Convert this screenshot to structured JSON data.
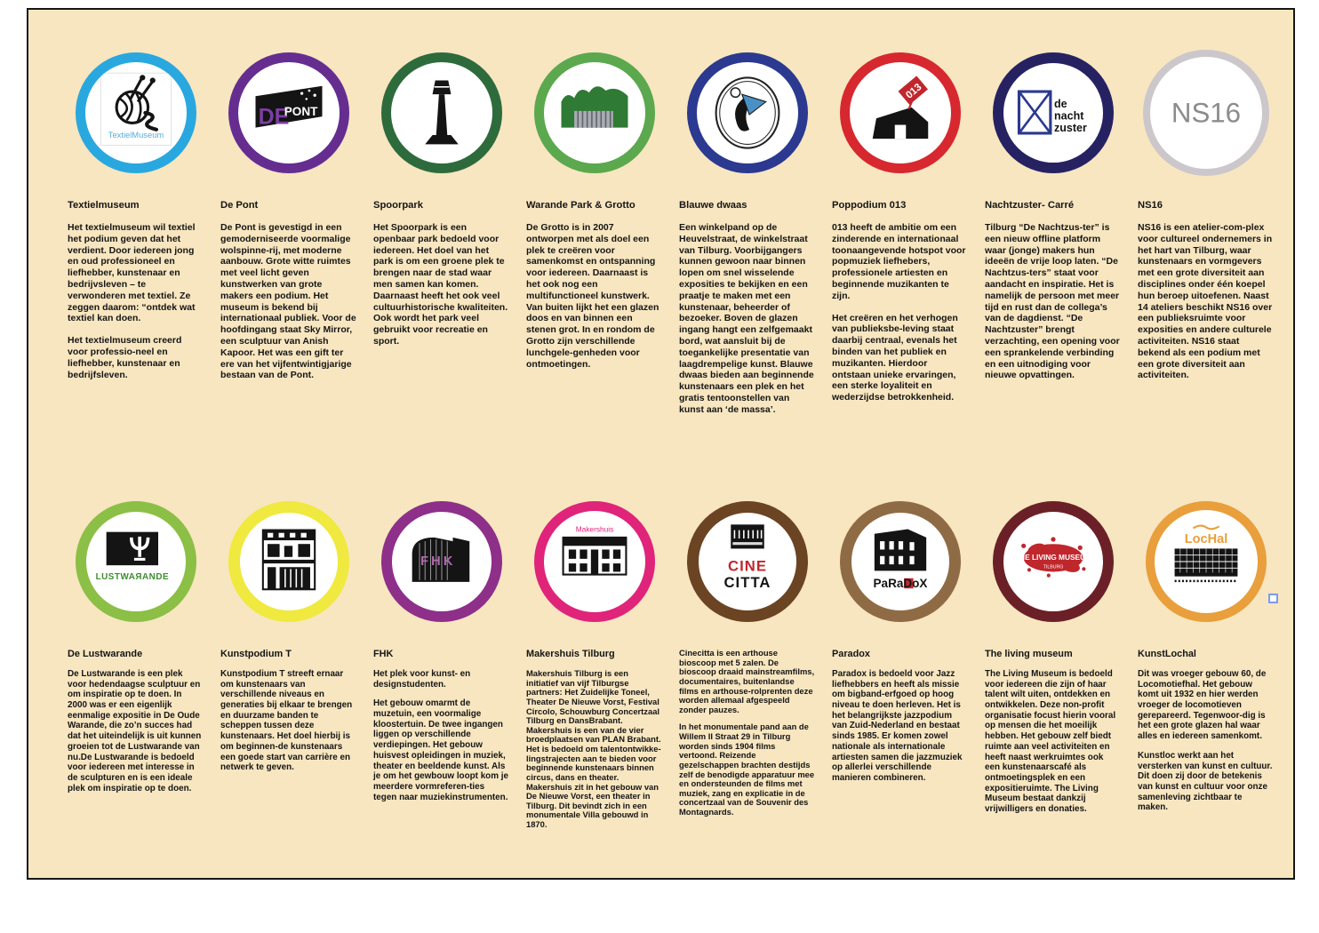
{
  "poster": {
    "background_color": "#F7E6C0",
    "border_color": "#161616",
    "page_background": "#ffffff",
    "stray_marker_color": "#7c9bf0",
    "venues": [
      {
        "id": "textielmuseum",
        "row": 1,
        "title": "Textielmuseum",
        "ring_color": "#29A8DF",
        "ring_width": 11,
        "logo_icon": "yarn-ball-knitting-needles-icon",
        "logo_lines": [
          "TextielMuseum"
        ],
        "logo_text_color": "#56AEDC",
        "paragraphs": [
          "Het textielmuseum wil textiel het podium geven dat het verdient. Door iedereen jong en oud professioneel en liefhebber, kunstenaar en bedrijvsleven – te verwonderen met textiel. Ze zeggen daarom: “ontdek wat textiel kan doen.",
          "Het textielmuseum creerd voor professio-neel en liefhebber, kunstenaar en bedrijfsleven."
        ]
      },
      {
        "id": "depont",
        "row": 1,
        "title": "De Pont",
        "ring_color": "#662D91",
        "ring_width": 11,
        "logo_icon": "de-pont-banner-icon",
        "logo_lines": [
          "DE",
          "PONT"
        ],
        "paragraphs": [
          "De Pont is gevestigd in een gemoderniseerde voormalige wolspinne-rij, met moderne aanbouw.  Grote witte ruimtes met veel licht geven kunstwerken van grote makers een podium. Het museum is bekend bij internationaal publiek. Voor de hoofdingang staat Sky Mirror, een sculptuur van Anish Kapoor. Het was een gift ter ere van het vijfentwintigjarige bestaan van de Pont."
        ]
      },
      {
        "id": "spoorpark",
        "row": 1,
        "title": "Spoorpark",
        "ring_color": "#2E6B3C",
        "ring_width": 11,
        "logo_icon": "observation-tower-icon",
        "logo_lines": [],
        "paragraphs": [
          "Het Spoorpark is een openbaar park bedoeld voor iedereen. Het doel van het park is om een groene plek te brengen naar de stad waar men samen kan komen. Daarnaast heeft het ook veel cultuurhistorische kwaliteiten. Ook wordt het park veel gebruikt voor recreatie en sport."
        ]
      },
      {
        "id": "warande",
        "row": 1,
        "title": "Warande Park & Grotto",
        "ring_color": "#5CA84E",
        "ring_width": 11,
        "logo_icon": "trees-with-glass-grotto-icon",
        "logo_lines": [],
        "paragraphs": [
          "De Grotto is in 2007 ontworpen met als doel een plek te creëren voor samenkomst en ontspanning voor iedereen. Daarnaast is het ook nog een multifunctioneel kunstwerk. Van buiten lijkt het een glazen doos en van binnen een stenen grot. In en rondom de Grotto zijn verschillende lunchgele-genheden voor ontmoetingen."
        ]
      },
      {
        "id": "blauwedwaas",
        "row": 1,
        "title": "Blauwe dwaas",
        "ring_color": "#2B3990",
        "ring_width": 11,
        "logo_icon": "sketched-face-with-blue-jester-hat-icon",
        "logo_lines": [],
        "paragraphs": [
          "Een winkelpand op de Heuvelstraat, de winkelstraat van Tilburg. Voorbijgangers kunnen gewoon naar binnen lopen om snel wisselende exposities te bekijken en een praatje te maken met een kunstenaar, beheerder of bezoeker. Boven de glazen ingang hangt een zelfgemaakt bord, wat aansluit bij de toegankelijke presentatie van laagdrempelige kunst. Blauwe dwaas bieden aan beginnende kunstenaars een plek en het gratis tentoonstellen van kunst aan ‘de massa’."
        ]
      },
      {
        "id": "poppodium013",
        "row": 1,
        "title": "Poppodium 013",
        "ring_color": "#D7282F",
        "ring_width": 11,
        "logo_icon": "013-venue-building-icon",
        "logo_lines": [
          "013"
        ],
        "paragraphs": [
          "013 heeft de ambitie om een zinderende en internationaal toonaangevende hotspot voor popmuziek liefhebers, professionele artiesten en beginnende muzikanten te zijn.",
          "Het creëren en het verhogen van publieksbe-leving staat daarbij centraal, evenals het binden van het publiek en muzikanten. Hierdoor ontstaan unieke ervaringen, een sterke loyaliteit en wederzijdse betrokkenheid."
        ]
      },
      {
        "id": "nachtzuster",
        "row": 1,
        "title": "Nachtzuster- Carré",
        "ring_color": "#262262",
        "ring_width": 12,
        "logo_icon": "crossed-box-icon",
        "logo_lines": [
          "de",
          "nacht",
          "zuster"
        ],
        "paragraphs": [
          "Tilburg “De Nachtzus-ter” is een nieuw offline platform waar (jonge) makers hun ideeën de vrije loop laten. “De Nachtzus-ters” staat voor aandacht en inspiratie. Het is namelijk de persoon met meer tijd en rust dan de collega’s van de dagdienst. “De Nachtzuster” brengt verzachting, een opening voor een sprankelende verbinding en een uitnodiging voor nieuwe opvattingen."
        ]
      },
      {
        "id": "ns16",
        "row": 1,
        "title": "NS16",
        "ring_color": "#CBC7CB",
        "ring_width": 8,
        "circle_size": 142,
        "logo_icon": "ns16-wordmark-icon",
        "logo_lines": [
          "NS16"
        ],
        "paragraphs": [
          "NS16 is een atelier-com-plex voor cultureel ondernemers in het hart van Tilburg, waar kunstenaars en vormgevers met een grote diversiteit aan disciplines onder één koepel hun beroep uitoefenen. Naast 14 ateliers beschikt NS16 over een publieksruimte voor exposities en andere culturele activiteiten. NS16 staat bekend als een podium met een grote diversiteit aan activiteiten."
        ]
      },
      {
        "id": "lustwarande",
        "row": 2,
        "title": "De Lustwarande",
        "ring_color": "#8CBF45",
        "ring_width": 12,
        "logo_icon": "lustwarande-trident-mark-icon",
        "logo_lines": [
          "LUSTWAЯANDE"
        ],
        "paragraphs": [
          "De Lustwarande is een plek voor hedendaagse sculptuur en om inspiratie op te doen. In 2000 was er een eigenlijk eenmalige expositie in De Oude Warande, die zo’n succes had dat het uiteindelijk is uit kunnen groeien tot de Lustwarande van nu.De Lustwarande is bedoeld voor iedereen met interesse in de sculpturen en is een ideale plek om inspiratie op te doen."
        ]
      },
      {
        "id": "kunstpodiumt",
        "row": 2,
        "title": "Kunstpodium T",
        "ring_color": "#F0E93F",
        "ring_width": 13,
        "logo_icon": "shop-facade-icon",
        "logo_lines": [],
        "paragraphs": [
          "Kunstpodium T streeft ernaar om kunstenaars van verschillende niveaus en generaties bij elkaar te brengen en duurzame banden te scheppen tussen deze kunstenaars. Het doel hierbij is om beginnen-de kunstenaars een goede start van carrière en netwerk te geven."
        ]
      },
      {
        "id": "fhk",
        "row": 2,
        "title": "FHK",
        "ring_color": "#8E2F8A",
        "ring_width": 12,
        "logo_icon": "fhk-building-icon",
        "logo_lines": [
          "FHK"
        ],
        "paragraphs": [
          "Het plek voor kunst- en designstudenten.",
          "Het gebouw omarmt de muzetuin, een voormalige kloostertuin. De twee ingangen liggen op verschillende verdiepingen. Het gebouw huisvest opleidingen in muziek, theater en beeldende kunst. Als je om het gewbouw loopt kom je meerdere vormreferen-ties tegen naar muziekinstrumenten."
        ]
      },
      {
        "id": "makershuis",
        "row": 2,
        "title": "Makershuis Tilburg",
        "ring_color": "#E0247A",
        "ring_width": 11,
        "small_text": true,
        "logo_icon": "monumental-villa-icon",
        "logo_lines": [
          "Makershuis"
        ],
        "paragraphs": [
          "Makershuis Tilburg is een initiatief van vijf Tilburgse partners: Het Zuidelijke Toneel, Theater De Nieuwe Vorst, Festival Circolo, Schouwburg Concertzaal Tilburg en DansBrabant. Makershuis is een van de vier broedplaatsen van PLAN Brabant.  Het is bedoeld om talentontwikke-lingstrajecten aan te bieden voor beginnende kunstenaars binnen circus, dans en theater. Makershuis zit in het gebouw van De Nieuwe Vorst, een theater in Tilburg. Dit bevindt zich in een monumentale Villa gebouwd in 1870."
        ]
      },
      {
        "id": "cinecitta",
        "row": 2,
        "title": "",
        "ring_color": "#6B4423",
        "ring_width": 13,
        "small_text": true,
        "logo_icon": "cinecitta-cinema-icon",
        "logo_lines": [
          "CINE",
          "CITTA"
        ],
        "paragraphs": [
          "Cinecitta is een arthouse bioscoop met 5 zalen. De bioscoop draaid mainstreamfilms, documentaires, buitenlandse films en arthouse-rolprenten deze worden allemaal afgespeeld zonder pauzes.",
          "In het monumentale pand aan de Willem II Straat 29 in Tilburg worden sinds 1904 films vertoond. Reizende gezelschappen brachten destijds zelf de benodigde apparatuur mee en ondersteunden de films met muziek, zang en explicatie in de concertzaal van de Souvenir des Montagnards."
        ]
      },
      {
        "id": "paradox",
        "row": 2,
        "title": "Paradox",
        "ring_color": "#8F6B45",
        "ring_width": 13,
        "logo_icon": "paradox-corner-building-icon",
        "logo_lines": [
          "PaRaDoX"
        ],
        "paragraphs": [
          "Paradox is bedoeld voor Jazz liefhebbers en heeft als missie om bigband-erfgoed op hoog niveau te doen herleven. Het is het belangrijkste jazzpodium van Zuid-Nederland en bestaat sinds 1985. Er komen zowel nationale als internationale artiesten samen die jazzmuziek op allerlei verschillende manieren combineren."
        ]
      },
      {
        "id": "livingmuseum",
        "row": 2,
        "title": "The living museum",
        "ring_color": "#6B2027",
        "ring_width": 12,
        "logo_icon": "red-paint-splatter-icon",
        "logo_lines": [
          "THE LIVING MUSEUM",
          "TILBURG"
        ],
        "paragraphs": [
          "The Living Museum is bedoeld voor iedereen die zijn of haar talent wilt uiten, ontdekken en ontwikkelen. Deze non-profit organisatie focust hierin vooral op mensen die het moeilijk hebben. Het gebouw zelf biedt ruimte aan veel activiteiten en heeft naast werkruimtes ook een kunstenaarscafé als ontmoetingsplek en een expositieruimte. The Living Museum bestaat dankzij vrijwilligers en donaties."
        ]
      },
      {
        "id": "kunstlochal",
        "row": 2,
        "title": "KunstLochal",
        "ring_color": "#E89F3C",
        "ring_width": 10,
        "logo_icon": "lochal-glass-hall-icon",
        "logo_lines": [
          "LocHal"
        ],
        "paragraphs": [
          "Dit was vroeger gebouw 60, de Locomotiefhal. Het gebouw komt uit 1932 en hier werden vroeger de locomotieven gerepareerd. Tegenwoor-dig is het een grote glazen hal waar alles en iedereen samenkomt.",
          "Kunstloc werkt aan het versterken van kunst en cultuur. Dit doen zij door de betekenis van kunst en cultuur voor onze samenleving zichtbaar te maken."
        ]
      }
    ]
  }
}
